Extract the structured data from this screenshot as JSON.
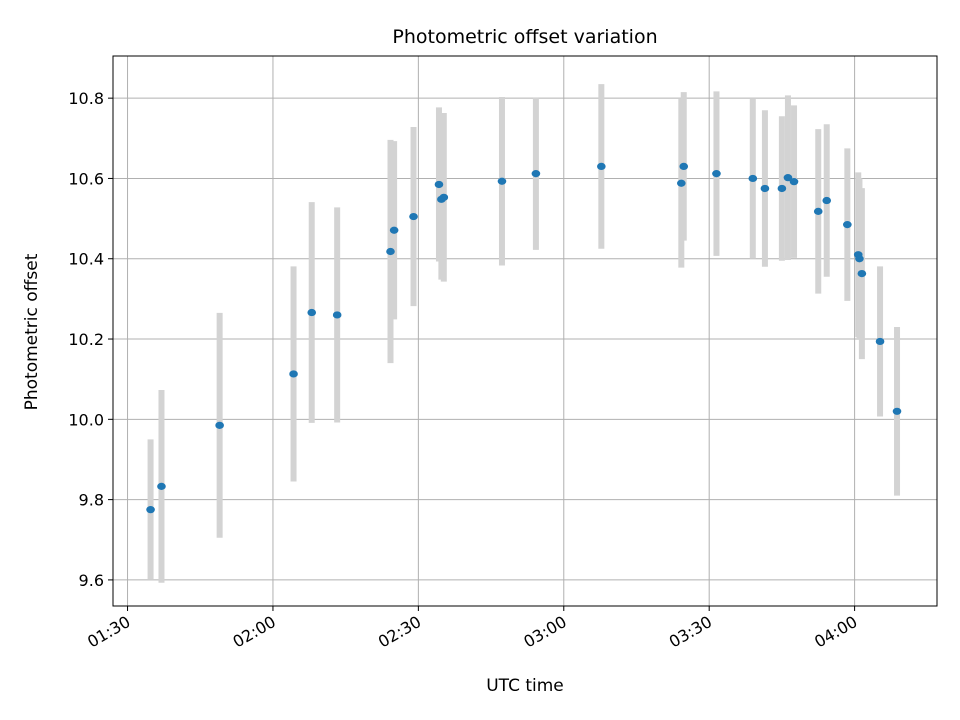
{
  "chart_data": {
    "type": "scatter",
    "title": "Photometric offset variation",
    "xlabel": "UTC time",
    "ylabel": "Photometric offset",
    "x_unit": "UTC time",
    "xlim": [
      "01:27",
      "04:17"
    ],
    "ylim": [
      9.535,
      10.905
    ],
    "x_ticks": [
      "01:30",
      "02:00",
      "02:30",
      "03:00",
      "03:30",
      "04:00"
    ],
    "y_ticks": [
      9.6,
      9.8,
      10.0,
      10.2,
      10.4,
      10.6,
      10.8
    ],
    "grid": true,
    "legend": "none",
    "colors": {
      "point": "#1f77b4",
      "errorbar": "#d3d3d3",
      "grid": "#b0b0b0"
    },
    "points": [
      {
        "x": "01:34:45",
        "y": 9.775,
        "err": 0.175
      },
      {
        "x": "01:37:00",
        "y": 9.833,
        "err": 0.24
      },
      {
        "x": "01:49:00",
        "y": 9.985,
        "err": 0.28
      },
      {
        "x": "02:04:15",
        "y": 10.113,
        "err": 0.268
      },
      {
        "x": "02:08:00",
        "y": 10.266,
        "err": 0.275
      },
      {
        "x": "02:13:15",
        "y": 10.26,
        "err": 0.268
      },
      {
        "x": "02:24:15",
        "y": 10.418,
        "err": 0.278
      },
      {
        "x": "02:25:00",
        "y": 10.471,
        "err": 0.222
      },
      {
        "x": "02:29:00",
        "y": 10.505,
        "err": 0.223
      },
      {
        "x": "02:34:15",
        "y": 10.585,
        "err": 0.192
      },
      {
        "x": "02:34:45",
        "y": 10.548,
        "err": 0.2
      },
      {
        "x": "02:35:15",
        "y": 10.553,
        "err": 0.21
      },
      {
        "x": "02:47:15",
        "y": 10.593,
        "err": 0.21
      },
      {
        "x": "02:54:15",
        "y": 10.612,
        "err": 0.19
      },
      {
        "x": "03:07:45",
        "y": 10.63,
        "err": 0.205
      },
      {
        "x": "03:24:15",
        "y": 10.588,
        "err": 0.21
      },
      {
        "x": "03:24:45",
        "y": 10.63,
        "err": 0.185
      },
      {
        "x": "03:31:30",
        "y": 10.612,
        "err": 0.205
      },
      {
        "x": "03:39:00",
        "y": 10.6,
        "err": 0.2
      },
      {
        "x": "03:41:30",
        "y": 10.575,
        "err": 0.195
      },
      {
        "x": "03:45:00",
        "y": 10.575,
        "err": 0.18
      },
      {
        "x": "03:46:15",
        "y": 10.602,
        "err": 0.205
      },
      {
        "x": "03:47:30",
        "y": 10.592,
        "err": 0.19
      },
      {
        "x": "03:52:30",
        "y": 10.518,
        "err": 0.205
      },
      {
        "x": "03:54:15",
        "y": 10.545,
        "err": 0.19
      },
      {
        "x": "03:58:30",
        "y": 10.485,
        "err": 0.19
      },
      {
        "x": "04:00:45",
        "y": 10.41,
        "err": 0.205
      },
      {
        "x": "04:01:00",
        "y": 10.4,
        "err": 0.2
      },
      {
        "x": "04:01:30",
        "y": 10.363,
        "err": 0.213
      },
      {
        "x": "04:05:15",
        "y": 10.194,
        "err": 0.187
      },
      {
        "x": "04:08:45",
        "y": 10.02,
        "err": 0.21
      }
    ]
  }
}
